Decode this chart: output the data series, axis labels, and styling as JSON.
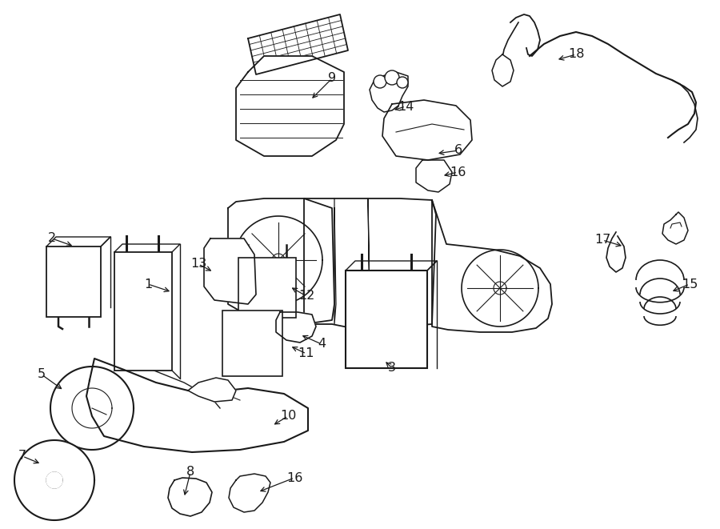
{
  "background_color": "#ffffff",
  "line_color": "#1a1a1a",
  "fig_width": 9.0,
  "fig_height": 6.61,
  "dpi": 100
}
